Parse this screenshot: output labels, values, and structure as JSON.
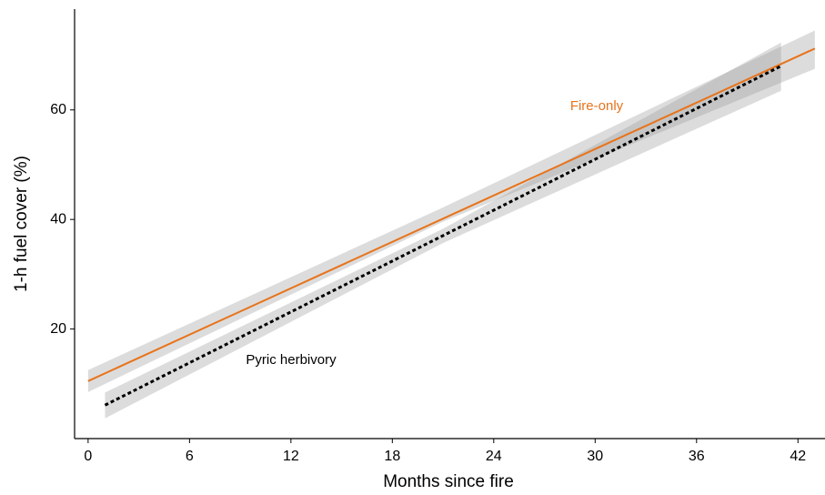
{
  "chart_data": {
    "type": "line",
    "x_label": "Months since fire",
    "y_label": "1-h fuel cover (%)",
    "xlim": [
      -0.8,
      43.6
    ],
    "ylim": [
      0,
      78.4
    ],
    "xticks": [
      0,
      6,
      12,
      18,
      24,
      30,
      36,
      42
    ],
    "yticks": [
      20,
      40,
      60
    ],
    "series": [
      {
        "name": "Fire-only",
        "color": "#e8731a",
        "dash": false,
        "x": [
          0,
          43
        ],
        "values": [
          10.5,
          71.2
        ],
        "band": {
          "x": [
            0,
            21,
            43
          ],
          "lower": [
            8.5,
            39.6,
            67.5
          ],
          "upper": [
            12.5,
            42.2,
            74.5
          ]
        }
      },
      {
        "name": "Pyric herbivory",
        "color": "#000000",
        "dash": true,
        "x": [
          1,
          41
        ],
        "values": [
          6.1,
          68
        ],
        "band": {
          "x": [
            1,
            21,
            41
          ],
          "lower": [
            3.7,
            35.7,
            63.5
          ],
          "upper": [
            8.4,
            38.3,
            72.3
          ]
        }
      }
    ]
  }
}
